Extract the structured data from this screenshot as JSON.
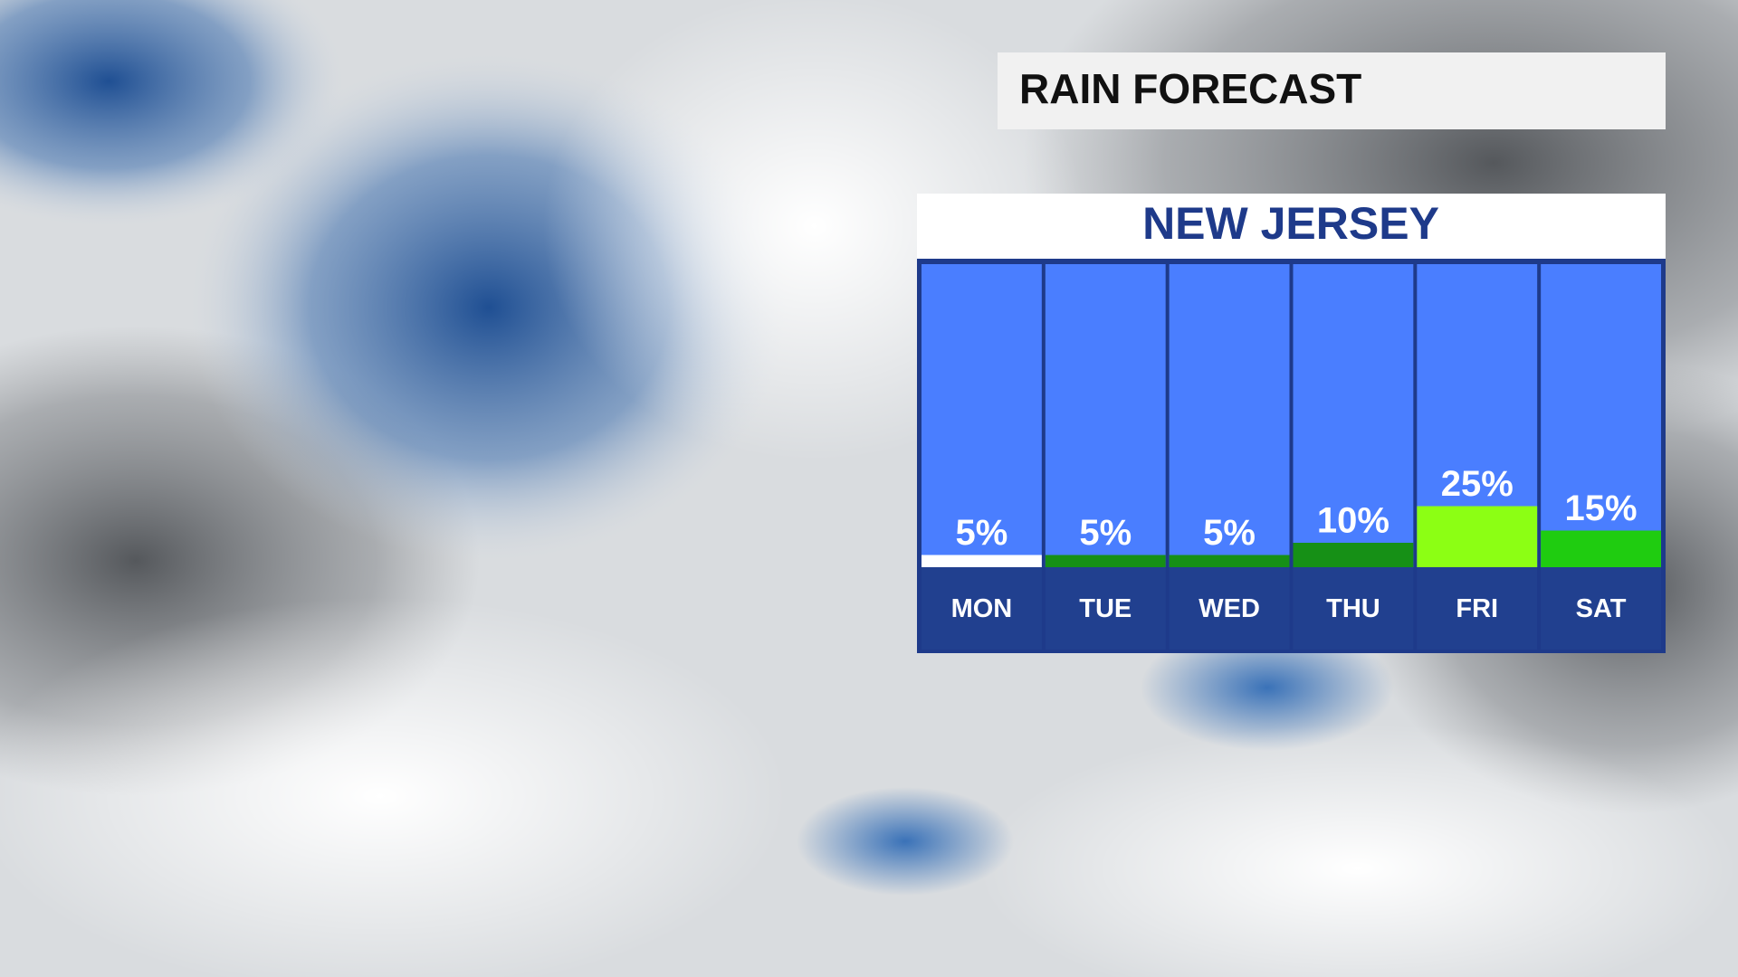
{
  "chart_data": {
    "type": "bar",
    "title": "RAIN FORECAST",
    "subtitle": "NEW JERSEY",
    "categories": [
      "MON",
      "TUE",
      "WED",
      "THU",
      "FRI",
      "SAT"
    ],
    "values": [
      5,
      5,
      5,
      10,
      25,
      15
    ],
    "value_labels": [
      "5%",
      "5%",
      "5%",
      "10%",
      "25%",
      "15%"
    ],
    "colors": [
      "#ffffff",
      "#169016",
      "#169016",
      "#169016",
      "#8cff14",
      "#1fcc10"
    ]
  }
}
